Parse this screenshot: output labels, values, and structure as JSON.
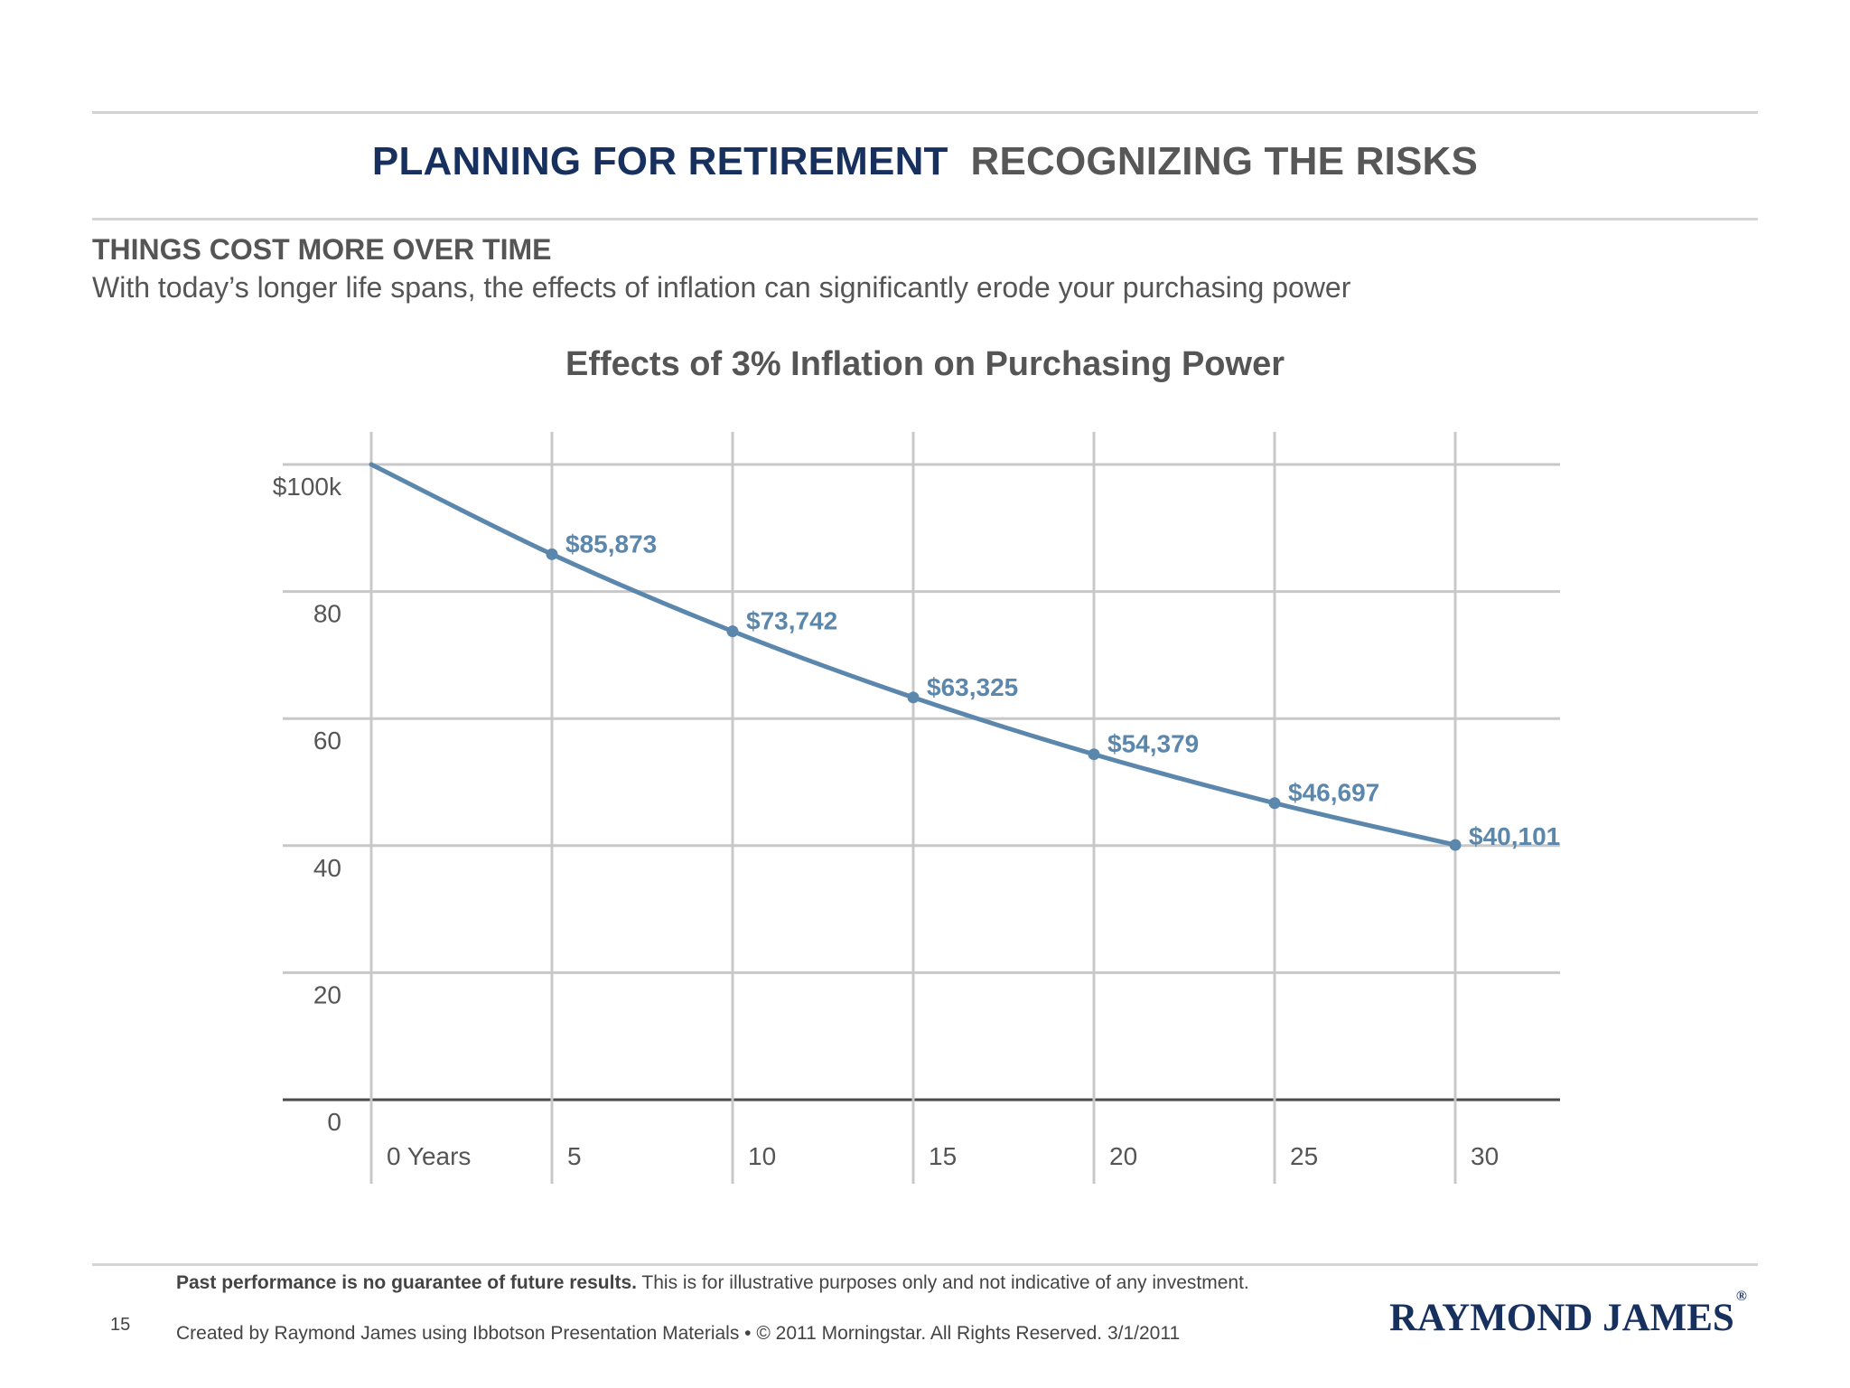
{
  "header": {
    "title_main": "PLANNING FOR RETIREMENT",
    "title_sub": "RECOGNIZING THE RISKS"
  },
  "section": {
    "heading": "THINGS COST MORE OVER TIME",
    "description": "With today’s longer life spans, the effects of inflation can significantly erode your purchasing power"
  },
  "chart_data": {
    "type": "line",
    "title": "Effects of 3% Inflation on Purchasing Power",
    "xlabel": "",
    "ylabel": "",
    "x": [
      0,
      5,
      10,
      15,
      20,
      25,
      30
    ],
    "x_tick_labels": [
      "0 Years",
      "5",
      "10",
      "15",
      "20",
      "25",
      "30"
    ],
    "y_tick_labels": [
      "0",
      "20",
      "40",
      "60",
      "80",
      "$100k"
    ],
    "y_ticks": [
      0,
      20,
      40,
      60,
      80,
      100
    ],
    "ylim": [
      0,
      100
    ],
    "xlim": [
      0,
      30
    ],
    "grid": true,
    "series": [
      {
        "values": [
          100000,
          85873,
          73742,
          63325,
          54379,
          46697,
          40101
        ],
        "data_labels": [
          "",
          "$85,873",
          "$73,742",
          "$63,325",
          "$54,379",
          "$46,697",
          "$40,101"
        ],
        "color": "#5b87ad"
      }
    ]
  },
  "footer": {
    "disclaimer_bold": "Past performance is no guarantee of future results.",
    "disclaimer_rest": " This is for illustrative purposes only and not indicative of any investment.",
    "credit": "Created by Raymond James using Ibbotson Presentation Materials •  © 2011 Morningstar. All Rights Reserved. 3/1/2011",
    "page_number": "15",
    "logo_text": "RAYMOND JAMES",
    "logo_mark": "®"
  },
  "colors": {
    "title_main": "#17305e",
    "title_sub": "#575757",
    "line": "#5b87ad",
    "grid": "#c8c8c8"
  }
}
